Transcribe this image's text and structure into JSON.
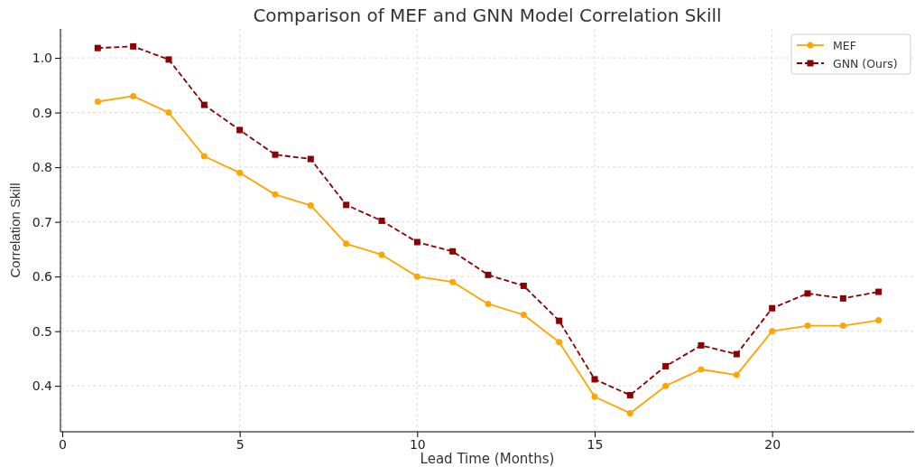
{
  "chart_data": {
    "type": "line",
    "title": "Comparison of MEF and GNN Model Correlation Skill",
    "xlabel": "Lead Time (Months)",
    "ylabel": "Correlation Skill",
    "x": [
      1,
      2,
      3,
      4,
      5,
      6,
      7,
      8,
      9,
      10,
      11,
      12,
      13,
      14,
      15,
      16,
      17,
      18,
      19,
      20,
      21,
      22,
      23
    ],
    "series": [
      {
        "name": "MEF",
        "color": "#ffa500",
        "marker": "circle",
        "line_style": "solid",
        "values": [
          0.92,
          0.93,
          0.9,
          0.82,
          0.79,
          0.75,
          0.73,
          0.66,
          0.64,
          0.6,
          0.59,
          0.55,
          0.53,
          0.48,
          0.38,
          0.35,
          0.4,
          0.43,
          0.42,
          0.5,
          0.51,
          0.51,
          0.52
        ]
      },
      {
        "name": "GNN (Ours)",
        "color": "#8b0000",
        "marker": "square",
        "line_style": "dashed",
        "values": [
          1.018,
          1.021,
          0.997,
          0.914,
          0.868,
          0.823,
          0.815,
          0.731,
          0.702,
          0.663,
          0.646,
          0.603,
          0.583,
          0.519,
          0.412,
          0.383,
          0.436,
          0.474,
          0.458,
          0.542,
          0.569,
          0.56,
          0.572
        ]
      }
    ],
    "xlim": [
      -0.05,
      24.0
    ],
    "xticks": [
      0,
      5,
      10,
      15,
      20
    ],
    "ylim": [
      0.316,
      1.053
    ],
    "yticks": [
      0.4,
      0.5,
      0.6,
      0.7,
      0.8,
      0.9,
      {
        "value": 1,
        "label": "1.0"
      }
    ],
    "grid": true,
    "legend": "top right"
  }
}
